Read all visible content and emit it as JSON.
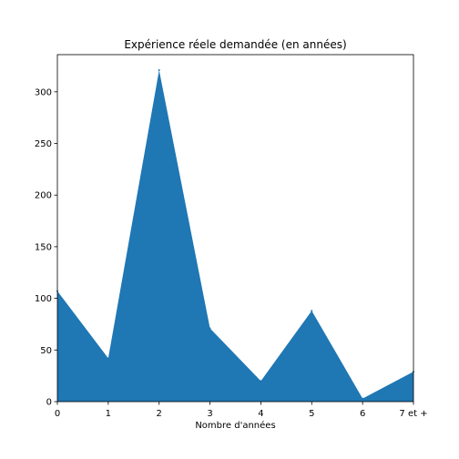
{
  "chart_data": {
    "type": "area",
    "title": "Expérience réele demandée (en années)",
    "xlabel": "Nombre d'années",
    "ylabel": "",
    "x_ticks": [
      "0",
      "1",
      "2",
      "3",
      "4",
      "5",
      "6",
      "7 et +"
    ],
    "y_ticks": [
      0,
      50,
      100,
      150,
      200,
      250,
      300
    ],
    "ylim": [
      0,
      336
    ],
    "values": [
      107,
      42,
      321,
      71,
      20,
      88,
      3,
      29
    ],
    "fill_color": "#1f77b4",
    "grid": false,
    "legend": "none"
  }
}
